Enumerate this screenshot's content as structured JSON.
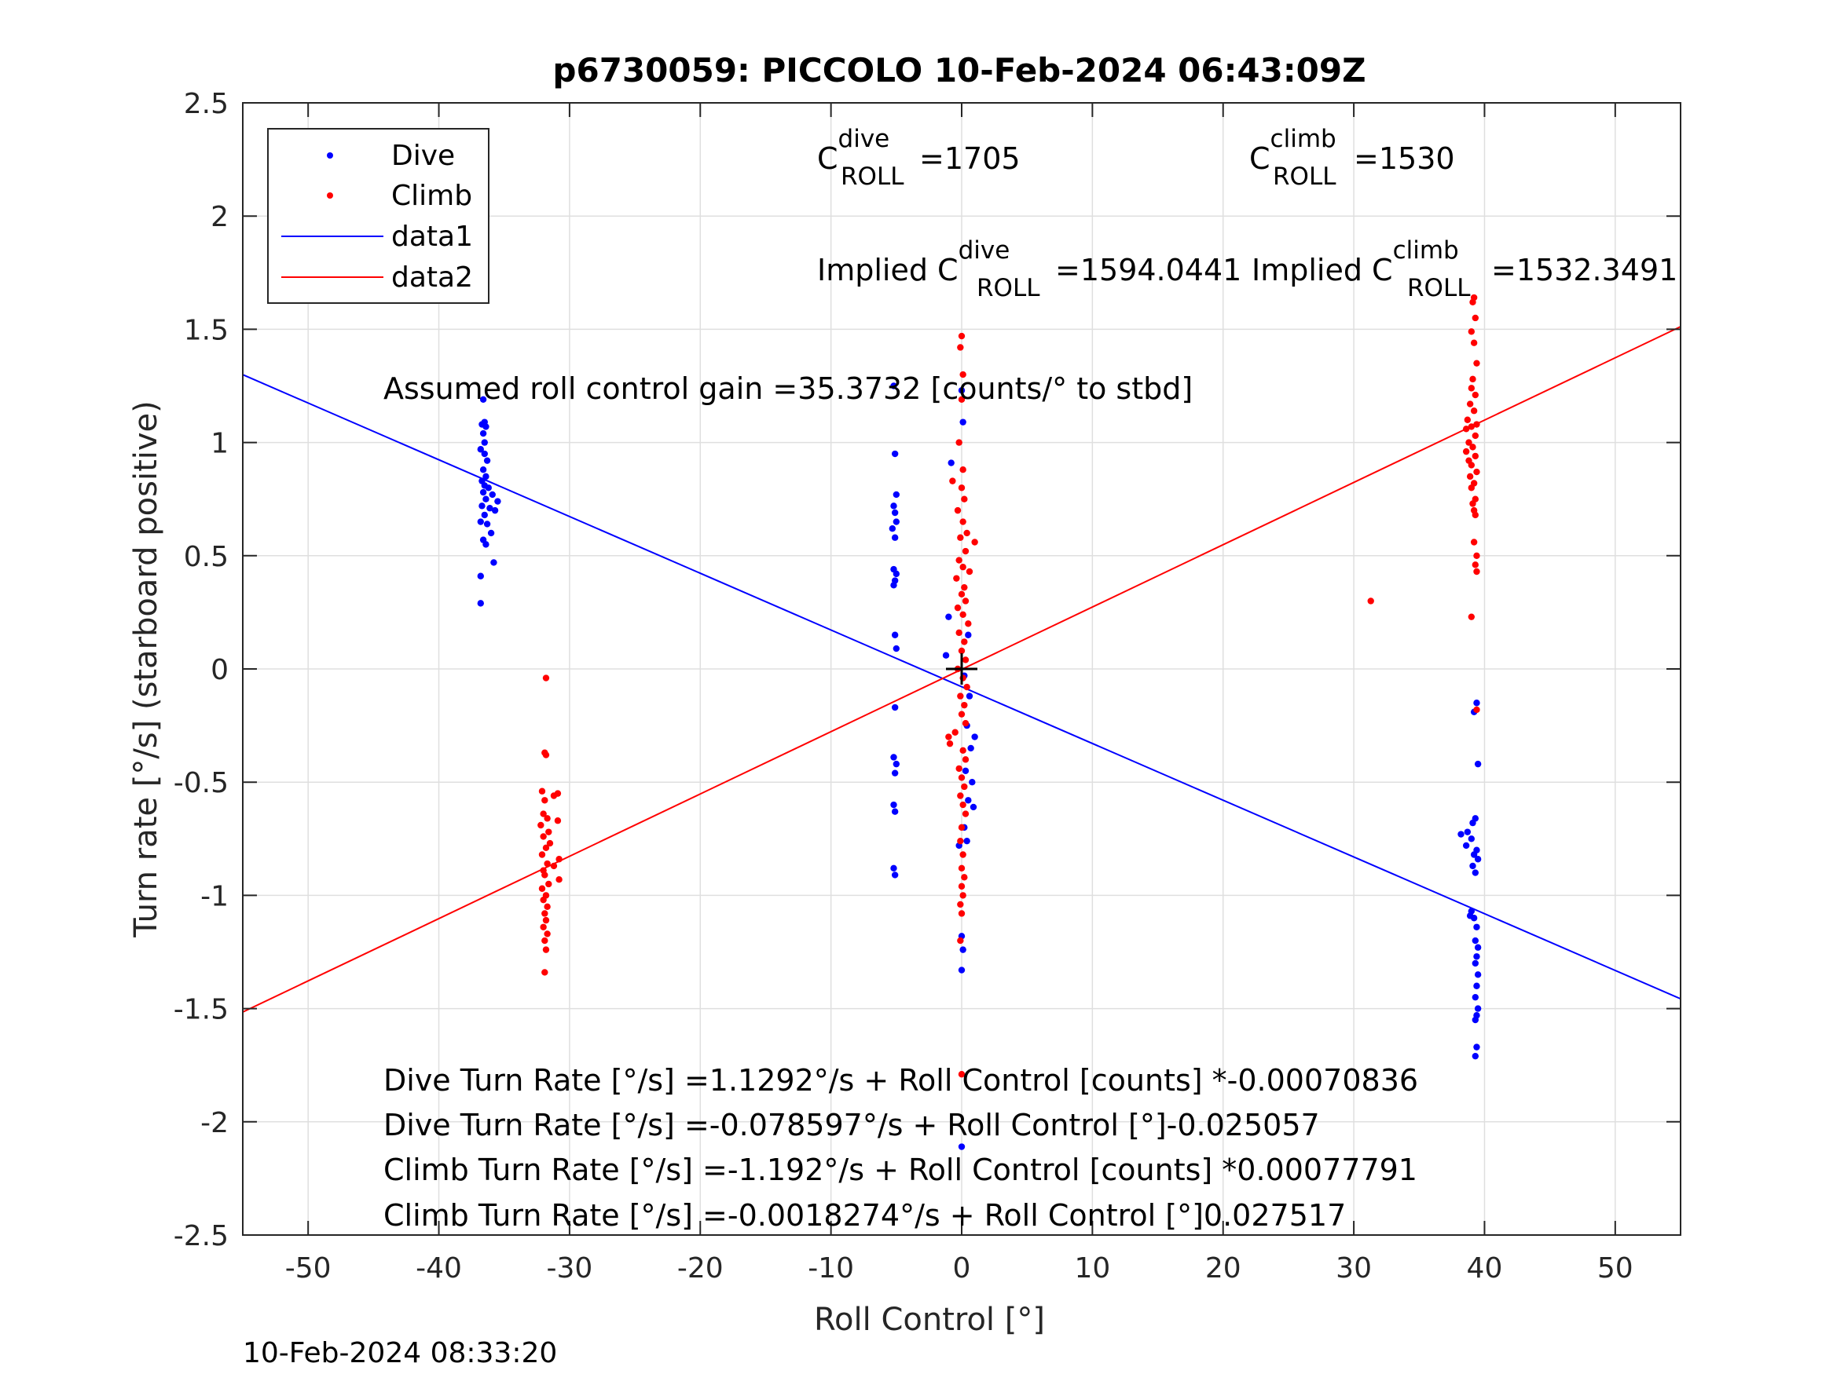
{
  "chart_data": {
    "type": "scatter",
    "title": "p6730059: PICCOLO 10-Feb-2024 06:43:09Z",
    "xlabel": "Roll Control [°]",
    "ylabel": "Turn rate [°/s] (starboard positive)",
    "xlim": [
      -55,
      55
    ],
    "ylim": [
      -2.5,
      2.5
    ],
    "xticks": [
      -50,
      -40,
      -30,
      -20,
      -10,
      0,
      10,
      20,
      30,
      40,
      50
    ],
    "yticks": [
      -2.5,
      -2,
      -1.5,
      -1,
      -0.5,
      0,
      0.5,
      1,
      1.5,
      2,
      2.5
    ],
    "xtick_labels": [
      "-50",
      "-40",
      "-30",
      "-20",
      "-10",
      "0",
      "10",
      "20",
      "30",
      "40",
      "50"
    ],
    "ytick_labels": [
      "-2.5",
      "-2",
      "-1.5",
      "-1",
      "-0.5",
      "0",
      "0.5",
      "1",
      "1.5",
      "2",
      "2.5"
    ],
    "grid": true,
    "legend_position": "top-left",
    "series": [
      {
        "name": "Dive",
        "kind": "points",
        "color": "#0000ff",
        "points": [
          [
            -36.6,
            1.19
          ],
          [
            -36.5,
            1.09
          ],
          [
            -36.7,
            1.08
          ],
          [
            -36.4,
            1.07
          ],
          [
            -36.6,
            1.04
          ],
          [
            -36.5,
            1.0
          ],
          [
            -36.8,
            0.97
          ],
          [
            -36.5,
            0.95
          ],
          [
            -36.3,
            0.92
          ],
          [
            -36.6,
            0.88
          ],
          [
            -36.4,
            0.85
          ],
          [
            -36.7,
            0.83
          ],
          [
            -36.5,
            0.81
          ],
          [
            -36.2,
            0.8
          ],
          [
            -36.6,
            0.78
          ],
          [
            -35.9,
            0.77
          ],
          [
            -36.4,
            0.75
          ],
          [
            -35.5,
            0.74
          ],
          [
            -36.7,
            0.72
          ],
          [
            -36.1,
            0.71
          ],
          [
            -35.7,
            0.7
          ],
          [
            -36.5,
            0.68
          ],
          [
            -36.8,
            0.65
          ],
          [
            -36.3,
            0.64
          ],
          [
            -36.0,
            0.6
          ],
          [
            -36.6,
            0.57
          ],
          [
            -36.4,
            0.55
          ],
          [
            -35.8,
            0.47
          ],
          [
            -36.8,
            0.41
          ],
          [
            -36.8,
            0.29
          ],
          [
            -5.2,
            1.25
          ],
          [
            -5.1,
            0.95
          ],
          [
            -5.0,
            0.77
          ],
          [
            -5.2,
            0.72
          ],
          [
            -5.1,
            0.69
          ],
          [
            -5.0,
            0.65
          ],
          [
            -5.3,
            0.62
          ],
          [
            -5.1,
            0.58
          ],
          [
            -5.2,
            0.44
          ],
          [
            -5.0,
            0.42
          ],
          [
            -5.1,
            0.39
          ],
          [
            -5.2,
            0.37
          ],
          [
            -5.1,
            0.15
          ],
          [
            -5.0,
            0.09
          ],
          [
            -5.1,
            -0.17
          ],
          [
            -5.2,
            -0.39
          ],
          [
            -5.0,
            -0.42
          ],
          [
            -5.1,
            -0.46
          ],
          [
            -5.2,
            -0.6
          ],
          [
            -5.1,
            -0.63
          ],
          [
            -5.2,
            -0.88
          ],
          [
            -5.1,
            -0.91
          ],
          [
            0.0,
            1.23
          ],
          [
            0.1,
            1.09
          ],
          [
            -0.8,
            0.91
          ],
          [
            -1.0,
            0.23
          ],
          [
            -1.2,
            0.06
          ],
          [
            0.5,
            0.15
          ],
          [
            0.2,
            -0.03
          ],
          [
            0.6,
            -0.12
          ],
          [
            0.4,
            -0.25
          ],
          [
            0.7,
            -0.35
          ],
          [
            1.0,
            -0.3
          ],
          [
            0.3,
            -0.45
          ],
          [
            0.8,
            -0.5
          ],
          [
            0.5,
            -0.58
          ],
          [
            0.9,
            -0.61
          ],
          [
            0.2,
            -0.7
          ],
          [
            0.4,
            -0.76
          ],
          [
            -0.2,
            -0.78
          ],
          [
            0.0,
            -1.18
          ],
          [
            0.1,
            -1.24
          ],
          [
            0.0,
            -1.33
          ],
          [
            0.0,
            -2.11
          ],
          [
            39.4,
            -0.15
          ],
          [
            39.2,
            -0.19
          ],
          [
            39.5,
            -0.42
          ],
          [
            39.3,
            -0.66
          ],
          [
            39.1,
            -0.68
          ],
          [
            38.7,
            -0.72
          ],
          [
            38.2,
            -0.73
          ],
          [
            39.0,
            -0.75
          ],
          [
            38.6,
            -0.78
          ],
          [
            39.4,
            -0.8
          ],
          [
            39.2,
            -0.82
          ],
          [
            39.5,
            -0.84
          ],
          [
            39.1,
            -0.87
          ],
          [
            39.3,
            -0.9
          ],
          [
            39.0,
            -1.07
          ],
          [
            38.9,
            -1.09
          ],
          [
            39.2,
            -1.1
          ],
          [
            39.4,
            -1.14
          ],
          [
            39.3,
            -1.2
          ],
          [
            39.5,
            -1.23
          ],
          [
            39.4,
            -1.27
          ],
          [
            39.3,
            -1.3
          ],
          [
            39.5,
            -1.35
          ],
          [
            39.4,
            -1.4
          ],
          [
            39.3,
            -1.45
          ],
          [
            39.5,
            -1.5
          ],
          [
            39.4,
            -1.53
          ],
          [
            39.3,
            -1.55
          ],
          [
            39.4,
            -1.67
          ],
          [
            39.3,
            -1.71
          ]
        ]
      },
      {
        "name": "Climb",
        "kind": "points",
        "color": "#ff0000",
        "points": [
          [
            -31.8,
            -0.04
          ],
          [
            -31.9,
            -0.37
          ],
          [
            -31.8,
            -0.38
          ],
          [
            -32.1,
            -0.54
          ],
          [
            -31.2,
            -0.56
          ],
          [
            -31.9,
            -0.58
          ],
          [
            -30.9,
            -0.55
          ],
          [
            -32.0,
            -0.64
          ],
          [
            -31.7,
            -0.66
          ],
          [
            -30.9,
            -0.67
          ],
          [
            -32.2,
            -0.69
          ],
          [
            -31.6,
            -0.72
          ],
          [
            -32.0,
            -0.74
          ],
          [
            -31.5,
            -0.77
          ],
          [
            -31.8,
            -0.79
          ],
          [
            -32.1,
            -0.82
          ],
          [
            -30.8,
            -0.84
          ],
          [
            -31.7,
            -0.86
          ],
          [
            -31.2,
            -0.87
          ],
          [
            -32.0,
            -0.89
          ],
          [
            -31.9,
            -0.91
          ],
          [
            -30.8,
            -0.93
          ],
          [
            -31.6,
            -0.95
          ],
          [
            -32.1,
            -0.97
          ],
          [
            -31.8,
            -1.0
          ],
          [
            -32.0,
            -1.02
          ],
          [
            -31.7,
            -1.05
          ],
          [
            -31.9,
            -1.08
          ],
          [
            -31.8,
            -1.11
          ],
          [
            -32.0,
            -1.14
          ],
          [
            -31.7,
            -1.17
          ],
          [
            -31.9,
            -1.2
          ],
          [
            -31.8,
            -1.24
          ],
          [
            -31.9,
            -1.34
          ],
          [
            0.0,
            1.47
          ],
          [
            -0.1,
            1.42
          ],
          [
            0.1,
            1.3
          ],
          [
            0.0,
            1.19
          ],
          [
            -0.2,
            1.0
          ],
          [
            0.1,
            0.88
          ],
          [
            -0.7,
            0.83
          ],
          [
            0.0,
            0.8
          ],
          [
            0.2,
            0.75
          ],
          [
            -0.3,
            0.7
          ],
          [
            0.1,
            0.65
          ],
          [
            0.4,
            0.6
          ],
          [
            -0.1,
            0.58
          ],
          [
            1.0,
            0.56
          ],
          [
            0.3,
            0.52
          ],
          [
            -0.2,
            0.48
          ],
          [
            0.1,
            0.45
          ],
          [
            0.6,
            0.43
          ],
          [
            -0.4,
            0.4
          ],
          [
            0.2,
            0.36
          ],
          [
            0.0,
            0.33
          ],
          [
            0.3,
            0.3
          ],
          [
            -0.3,
            0.27
          ],
          [
            0.1,
            0.24
          ],
          [
            0.5,
            0.2
          ],
          [
            -0.2,
            0.16
          ],
          [
            0.2,
            0.12
          ],
          [
            0.0,
            0.08
          ],
          [
            0.3,
            0.04
          ],
          [
            -0.3,
            0.0
          ],
          [
            0.1,
            -0.04
          ],
          [
            0.4,
            -0.08
          ],
          [
            -0.1,
            -0.12
          ],
          [
            0.2,
            -0.16
          ],
          [
            0.0,
            -0.2
          ],
          [
            0.3,
            -0.24
          ],
          [
            -0.5,
            -0.28
          ],
          [
            -1.0,
            -0.3
          ],
          [
            -0.9,
            -0.33
          ],
          [
            0.1,
            -0.36
          ],
          [
            0.3,
            -0.4
          ],
          [
            -0.2,
            -0.44
          ],
          [
            0.0,
            -0.48
          ],
          [
            0.2,
            -0.52
          ],
          [
            -0.1,
            -0.56
          ],
          [
            0.1,
            -0.6
          ],
          [
            0.3,
            -0.64
          ],
          [
            0.0,
            -0.7
          ],
          [
            -0.1,
            -0.76
          ],
          [
            0.1,
            -0.82
          ],
          [
            0.0,
            -0.88
          ],
          [
            0.2,
            -0.92
          ],
          [
            0.0,
            -0.96
          ],
          [
            0.1,
            -1.0
          ],
          [
            -0.1,
            -1.04
          ],
          [
            0.0,
            -1.08
          ],
          [
            -0.1,
            -1.2
          ],
          [
            0.0,
            -1.79
          ],
          [
            31.3,
            0.3
          ],
          [
            39.2,
            1.64
          ],
          [
            39.1,
            1.62
          ],
          [
            39.3,
            1.55
          ],
          [
            39.0,
            1.49
          ],
          [
            39.2,
            1.44
          ],
          [
            39.4,
            1.35
          ],
          [
            39.1,
            1.28
          ],
          [
            39.0,
            1.24
          ],
          [
            39.3,
            1.21
          ],
          [
            38.9,
            1.17
          ],
          [
            39.2,
            1.14
          ],
          [
            38.7,
            1.1
          ],
          [
            39.4,
            1.08
          ],
          [
            39.0,
            1.07
          ],
          [
            38.6,
            1.06
          ],
          [
            39.3,
            1.03
          ],
          [
            38.8,
            1.0
          ],
          [
            39.1,
            0.98
          ],
          [
            38.6,
            0.96
          ],
          [
            39.3,
            0.94
          ],
          [
            38.8,
            0.92
          ],
          [
            39.0,
            0.9
          ],
          [
            39.4,
            0.87
          ],
          [
            38.9,
            0.85
          ],
          [
            39.2,
            0.82
          ],
          [
            39.0,
            0.8
          ],
          [
            39.3,
            0.75
          ],
          [
            39.1,
            0.73
          ],
          [
            39.2,
            0.7
          ],
          [
            39.3,
            0.68
          ],
          [
            39.2,
            0.56
          ],
          [
            39.4,
            0.5
          ],
          [
            39.3,
            0.46
          ],
          [
            39.4,
            0.43
          ],
          [
            39.0,
            0.23
          ],
          [
            39.4,
            -0.18
          ]
        ]
      },
      {
        "name": "data1",
        "kind": "line",
        "color": "#0000ff",
        "x": [
          -55,
          55
        ],
        "y": [
          1.2996,
          -1.4568
        ]
      },
      {
        "name": "data2",
        "kind": "line",
        "color": "#ff0000",
        "x": [
          -55,
          55
        ],
        "y": [
          -1.5153,
          1.5117
        ]
      }
    ],
    "center_marker": {
      "x": 0,
      "y": 0,
      "color": "#000000"
    },
    "annotations": {
      "c_dive": {
        "base": "C",
        "sup": "dive",
        "sub": "ROLL",
        "value": "=1705"
      },
      "c_climb": {
        "base": "C",
        "sup": "climb",
        "sub": "ROLL",
        "value": "=1530"
      },
      "implied_dive": {
        "prefix": "Implied C",
        "sup": "dive",
        "sub": "ROLL",
        "value": "=1594.0441"
      },
      "implied_climb": {
        "prefix": "Implied C",
        "sup": "climb",
        "sub": "ROLL",
        "value": "=1532.3491"
      },
      "gain": "Assumed roll control gain =35.3732 [counts/° to stbd]",
      "eq1": "Dive Turn Rate [°/s] =1.1292°/s + Roll Control [counts] *-0.00070836",
      "eq2": "Dive Turn Rate [°/s] =-0.078597°/s + Roll Control [°]-0.025057",
      "eq3": "Climb Turn Rate [°/s] =-1.192°/s + Roll Control [counts] *0.00077791",
      "eq4": "Climb Turn Rate [°/s] =-0.0018274°/s + Roll Control [°]0.027517"
    },
    "timestamp": "10-Feb-2024 08:33:20"
  }
}
